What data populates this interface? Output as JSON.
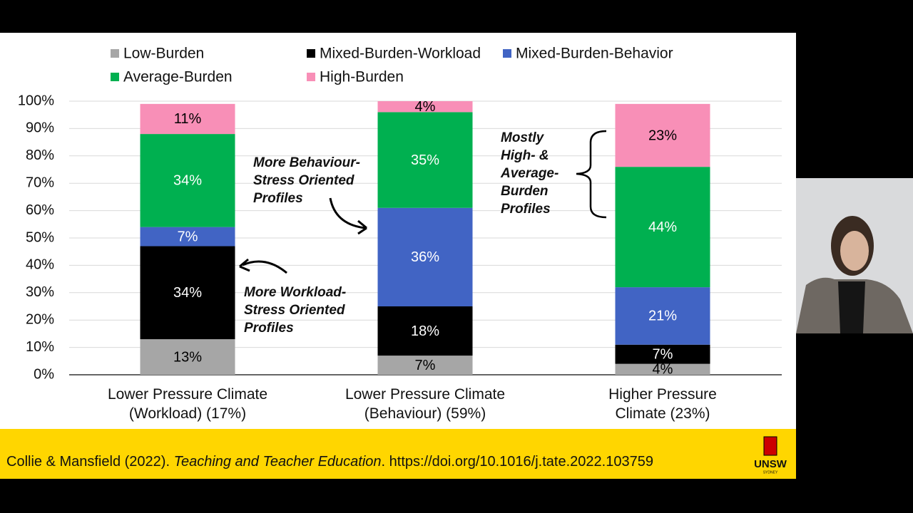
{
  "chart_data": {
    "type": "stacked_bar",
    "categories": [
      "Lower Pressure Climate (Workload) (17%)",
      "Lower Pressure Climate (Behaviour) (59%)",
      "Higher Pressure Climate (23%)"
    ],
    "series": [
      {
        "name": "Low-Burden",
        "color": "#a6a6a6",
        "label_color": "#000000",
        "values": [
          13,
          7,
          4
        ],
        "value_labels": [
          "13%",
          "7%",
          "4%"
        ]
      },
      {
        "name": "Mixed-Burden-Workload",
        "color": "#000000",
        "label_color": "#ffffff",
        "values": [
          34,
          18,
          7
        ],
        "value_labels": [
          "34%",
          "18%",
          "7%"
        ]
      },
      {
        "name": "Mixed-Burden-Behavior",
        "color": "#4164c4",
        "label_color": "#ffffff",
        "values": [
          7,
          36,
          21
        ],
        "value_labels": [
          "7%",
          "36%",
          "21%"
        ]
      },
      {
        "name": "Average-Burden",
        "color": "#00b050",
        "label_color": "#ffffff",
        "values": [
          34,
          35,
          44
        ],
        "value_labels": [
          "34%",
          "35%",
          "44%"
        ]
      },
      {
        "name": "High-Burden",
        "color": "#f88fb7",
        "label_color": "#000000",
        "values": [
          11,
          4,
          23
        ],
        "value_labels": [
          "11%",
          "4%",
          "23%"
        ]
      }
    ],
    "ylim": [
      0,
      100
    ],
    "yticks": [
      {
        "value": 0,
        "label": "0%"
      },
      {
        "value": 10,
        "label": "10%"
      },
      {
        "value": 20,
        "label": "20%"
      },
      {
        "value": 30,
        "label": "30%"
      },
      {
        "value": 40,
        "label": "40%"
      },
      {
        "value": 50,
        "label": "50%"
      },
      {
        "value": 60,
        "label": "60%"
      },
      {
        "value": 70,
        "label": "70%"
      },
      {
        "value": 80,
        "label": "80%"
      },
      {
        "value": 90,
        "label": "90%"
      },
      {
        "value": 100,
        "label": "100%"
      }
    ],
    "grid": true,
    "legend": "top",
    "annotations": [
      {
        "lines": [
          "More Workload-",
          "Stress Oriented",
          "Profiles"
        ]
      },
      {
        "lines": [
          "More Behaviour-",
          "Stress Oriented",
          "Profiles"
        ]
      },
      {
        "lines": [
          "Mostly",
          "High- &",
          "Average-",
          "Burden",
          "Profiles"
        ]
      }
    ]
  },
  "footer": {
    "authors": "Collie & Mansfield (2022). ",
    "journal": "Teaching and Teacher Education",
    "doi": ". https://doi.org/10.1016/j.tate.2022.103759"
  },
  "logo": {
    "name": "UNSW",
    "city": "SYDNEY"
  }
}
